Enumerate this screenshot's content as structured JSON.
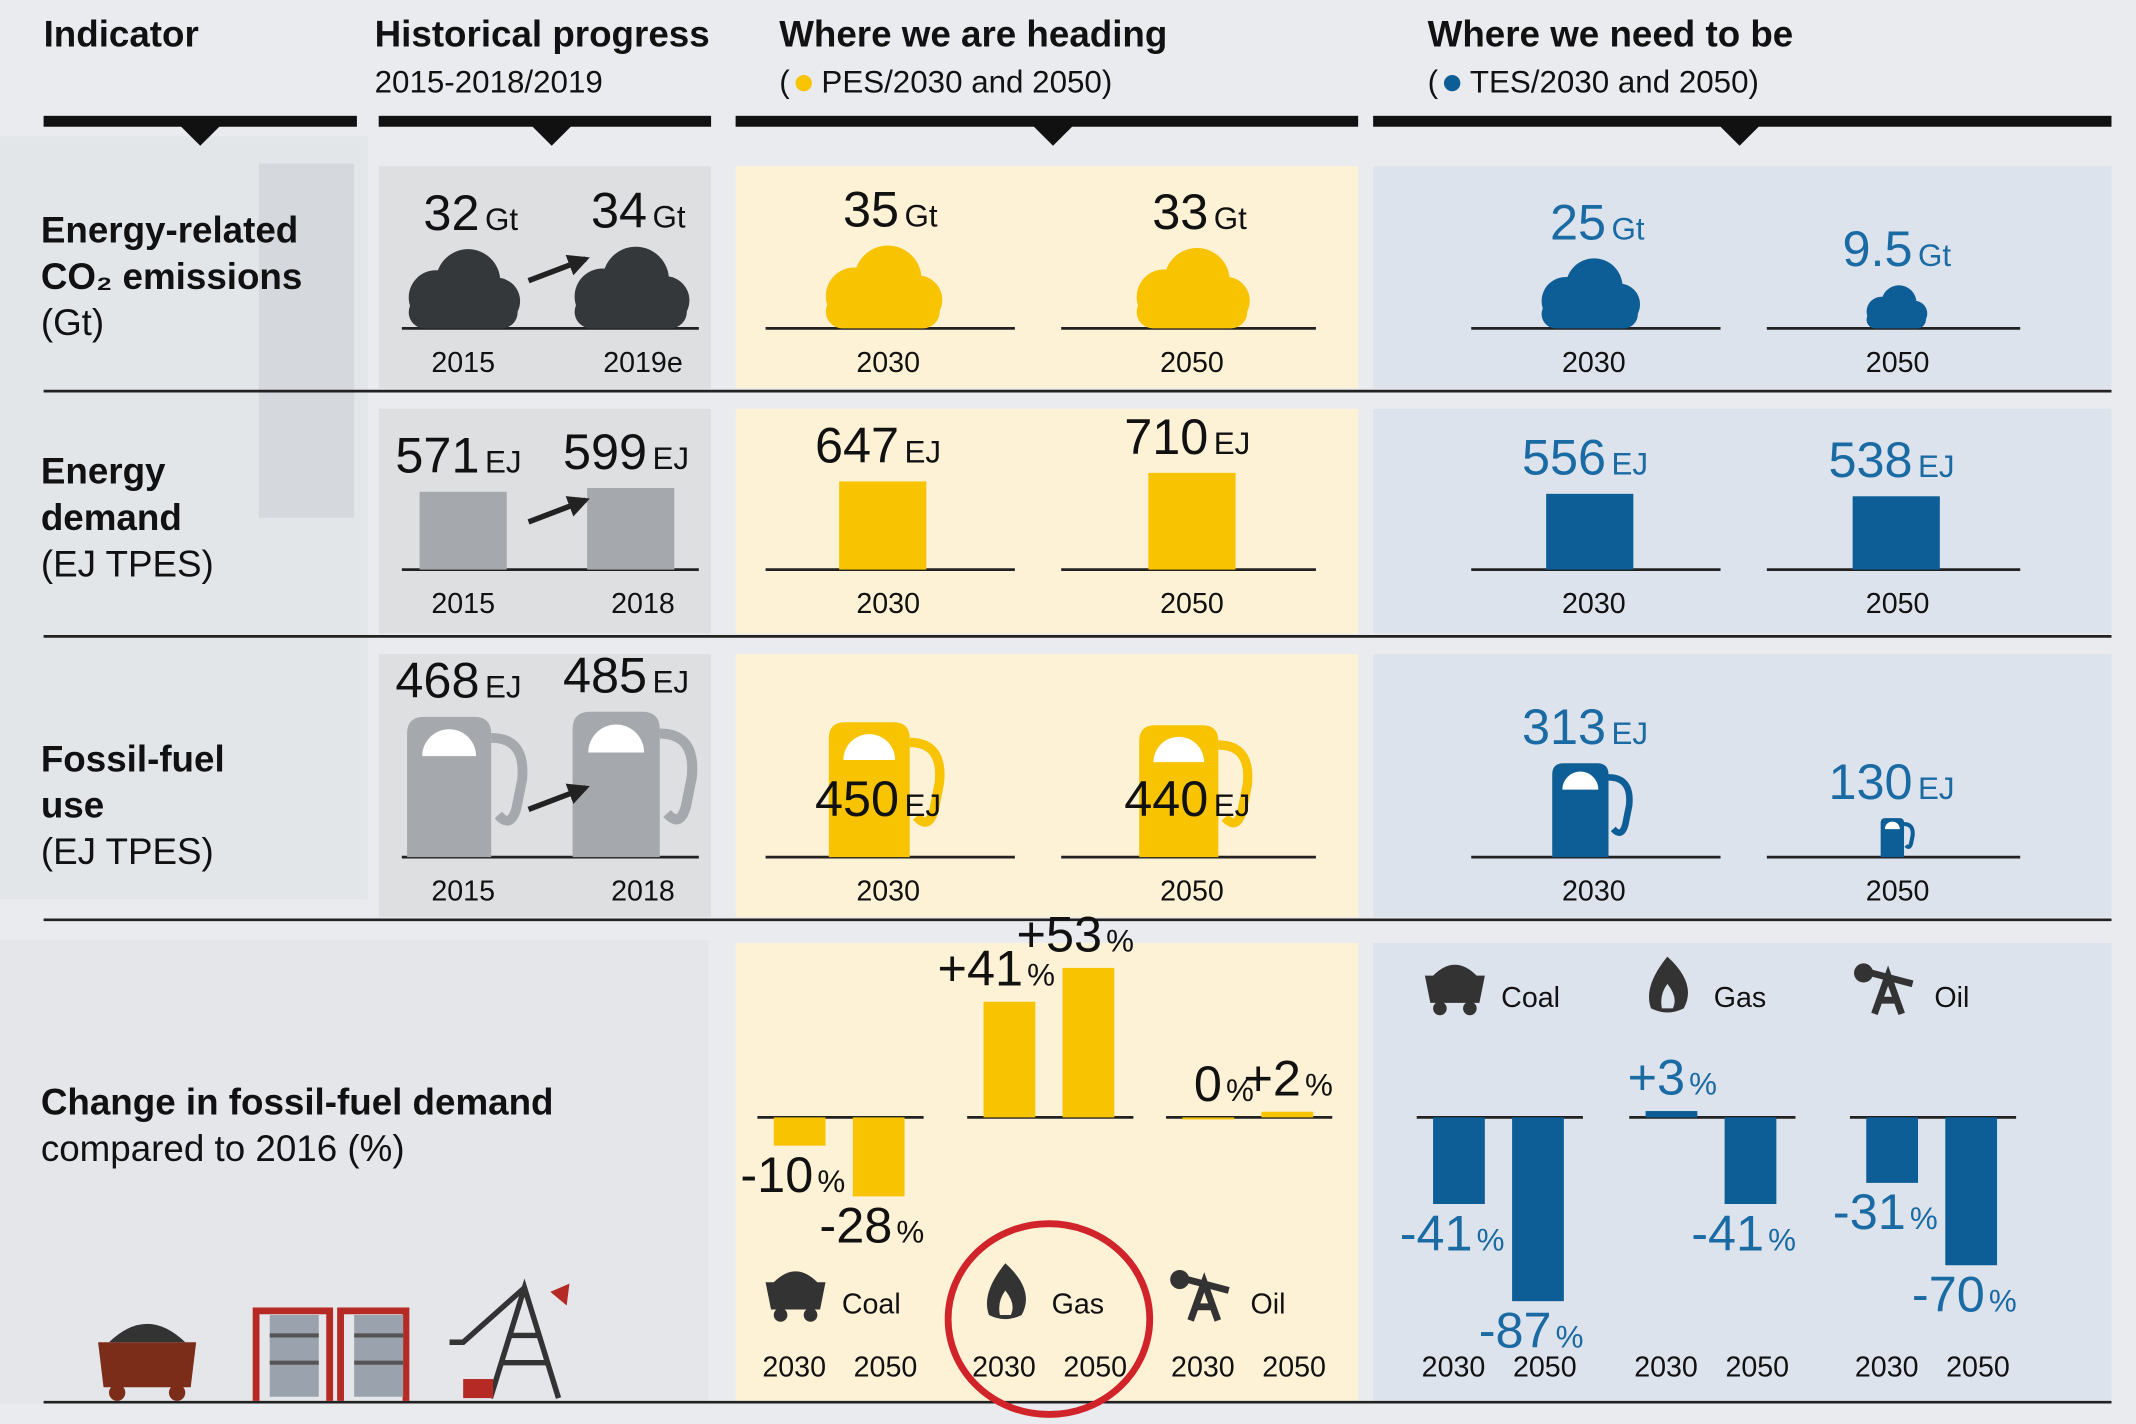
{
  "header": {
    "indicator": "Indicator",
    "historical": {
      "title": "Historical progress",
      "subtitle": "2015-2018/2019"
    },
    "heading": {
      "title": "Where we are heading",
      "subtitle_parts": [
        "(",
        "PES/2030 and 2050)"
      ]
    },
    "need": {
      "title": "Where we need to be",
      "subtitle_parts": [
        "(",
        "TES/2030 and 2050)"
      ]
    }
  },
  "colors": {
    "historical": "#a5a8ac",
    "historical_cloud": "#35383b",
    "heading": "#f8c300",
    "need": "#0d5e96",
    "need_text": "#1a6aa3"
  },
  "rows": [
    {
      "label": [
        "Energy-related",
        "CO₂ emissions",
        "(Gt)"
      ],
      "unit": "Gt",
      "icon": "cloud",
      "historical": [
        {
          "year": "2015",
          "value": 32
        },
        {
          "year": "2019e",
          "value": 34
        }
      ],
      "heading": [
        {
          "year": "2030",
          "value": 35
        },
        {
          "year": "2050",
          "value": 33
        }
      ],
      "need": [
        {
          "year": "2030",
          "value": 25
        },
        {
          "year": "2050",
          "value": 9.5
        }
      ]
    },
    {
      "label": [
        "Energy",
        "demand",
        "(EJ TPES)"
      ],
      "unit": "EJ",
      "icon": "bar",
      "historical": [
        {
          "year": "2015",
          "value": 571
        },
        {
          "year": "2018",
          "value": 599
        }
      ],
      "heading": [
        {
          "year": "2030",
          "value": 647
        },
        {
          "year": "2050",
          "value": 710
        }
      ],
      "need": [
        {
          "year": "2030",
          "value": 556
        },
        {
          "year": "2050",
          "value": 538
        }
      ]
    },
    {
      "label": [
        "Fossil-fuel",
        "use",
        "(EJ TPES)"
      ],
      "unit": "EJ",
      "icon": "pump",
      "historical": [
        {
          "year": "2015",
          "value": 468
        },
        {
          "year": "2018",
          "value": 485
        }
      ],
      "heading": [
        {
          "year": "2030",
          "value": 450
        },
        {
          "year": "2050",
          "value": 440
        }
      ],
      "need": [
        {
          "year": "2030",
          "value": 313
        },
        {
          "year": "2050",
          "value": 130
        }
      ]
    }
  ],
  "change": {
    "label": [
      "Change in fossil-fuel demand",
      "compared to 2016 (%)"
    ],
    "unit": "%",
    "fuels": [
      "Coal",
      "Gas",
      "Oil"
    ],
    "years": [
      "2030",
      "2050"
    ],
    "heading": {
      "values": [
        [
          -10,
          -28
        ],
        [
          41,
          53
        ],
        [
          0,
          2
        ]
      ],
      "value_labels": [
        [
          "-10",
          "-28"
        ],
        [
          "+41",
          "+53"
        ],
        [
          "0",
          "+2"
        ]
      ]
    },
    "need": {
      "values": [
        [
          -41,
          -87
        ],
        [
          3,
          -41
        ],
        [
          -31,
          -70
        ]
      ],
      "value_labels": [
        [
          "-41",
          "-87"
        ],
        [
          "+3",
          "-41"
        ],
        [
          "-31",
          "-70"
        ]
      ]
    }
  }
}
